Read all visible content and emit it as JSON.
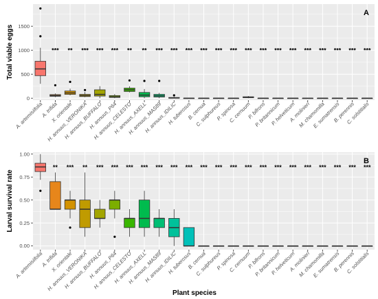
{
  "xlabel": "Plant species",
  "chart_data": [
    {
      "type": "box",
      "panel": "A",
      "ylabel": "Total viable eggs",
      "ylim": [
        -40,
        1960
      ],
      "yticks": [
        0,
        500,
        1000,
        1500
      ],
      "categories": [
        "A. artemisiifolia",
        "A. trifida",
        "X. orientale",
        "H. annuus_VERONIKA",
        "H. annuus_BUFFALO",
        "H. annuus_P64",
        "H. annuus_CELESTO",
        "H. annuus_AXELL",
        "H. annuus_MAS89",
        "H. annuus_IDILIC",
        "H. tuberosus",
        "B. cernua",
        "C. sulphureus",
        "P. spinosa",
        "C. cernuum",
        "P. bifrons",
        "P. britannicum",
        "P. helveticum",
        "A. molinieri",
        "M. chamomilla",
        "E. sumatrensis",
        "B. perennis",
        "C. solstitialis"
      ],
      "significance": [
        "",
        "***",
        "**",
        "***",
        "***",
        "***",
        "**",
        "**",
        "***",
        "***",
        "***",
        "***",
        "***",
        "***",
        "***",
        "***",
        "***",
        "***",
        "***",
        "***",
        "***",
        "***",
        "***"
      ],
      "boxes": [
        {
          "min": 300,
          "q1": 470,
          "median": 610,
          "q3": 770,
          "max": 1050,
          "outliers": [
            1290,
            1870
          ]
        },
        {
          "min": 20,
          "q1": 40,
          "median": 55,
          "q3": 75,
          "max": 100,
          "outliers": [
            270
          ]
        },
        {
          "min": 60,
          "q1": 80,
          "median": 110,
          "q3": 150,
          "max": 200,
          "outliers": [
            340
          ]
        },
        {
          "min": 20,
          "q1": 35,
          "median": 55,
          "q3": 80,
          "max": 130,
          "outliers": [
            170
          ]
        },
        {
          "min": 0,
          "q1": 45,
          "median": 80,
          "q3": 175,
          "max": 250,
          "outliers": []
        },
        {
          "min": 0,
          "q1": 15,
          "median": 30,
          "q3": 55,
          "max": 85,
          "outliers": []
        },
        {
          "min": 120,
          "q1": 140,
          "median": 175,
          "q3": 210,
          "max": 250,
          "outliers": [
            370
          ]
        },
        {
          "min": 0,
          "q1": 30,
          "median": 65,
          "q3": 120,
          "max": 190,
          "outliers": [
            360
          ]
        },
        {
          "min": 0,
          "q1": 25,
          "median": 50,
          "q3": 80,
          "max": 110,
          "outliers": [
            360
          ]
        },
        {
          "min": 0,
          "q1": 0,
          "median": 5,
          "q3": 15,
          "max": 30,
          "outliers": [
            60
          ]
        },
        {
          "min": 0,
          "q1": 0,
          "median": 0,
          "q3": 0,
          "max": 0,
          "outliers": []
        },
        {
          "min": 0,
          "q1": 0,
          "median": 0,
          "q3": 0,
          "max": 0,
          "outliers": []
        },
        {
          "min": 0,
          "q1": 0,
          "median": 0,
          "q3": 0,
          "max": 0,
          "outliers": []
        },
        {
          "min": 0,
          "q1": 0,
          "median": 0,
          "q3": 0,
          "max": 0,
          "outliers": []
        },
        {
          "min": 0,
          "q1": 10,
          "median": 20,
          "q3": 30,
          "max": 45,
          "outliers": []
        },
        {
          "min": 0,
          "q1": 0,
          "median": 0,
          "q3": 0,
          "max": 0,
          "outliers": []
        },
        {
          "min": 0,
          "q1": 0,
          "median": 0,
          "q3": 0,
          "max": 0,
          "outliers": []
        },
        {
          "min": 0,
          "q1": 0,
          "median": 0,
          "q3": 0,
          "max": 0,
          "outliers": []
        },
        {
          "min": 0,
          "q1": 0,
          "median": 0,
          "q3": 0,
          "max": 0,
          "outliers": []
        },
        {
          "min": 0,
          "q1": 0,
          "median": 0,
          "q3": 0,
          "max": 0,
          "outliers": []
        },
        {
          "min": 0,
          "q1": 0,
          "median": 0,
          "q3": 0,
          "max": 0,
          "outliers": []
        },
        {
          "min": 0,
          "q1": 0,
          "median": 0,
          "q3": 0,
          "max": 0,
          "outliers": []
        },
        {
          "min": 0,
          "q1": 0,
          "median": 0,
          "q3": 0,
          "max": 0,
          "outliers": []
        }
      ],
      "grid": true
    },
    {
      "type": "box",
      "panel": "B",
      "ylabel": "Larval survival rate",
      "ylim": [
        -0.04,
        1.02
      ],
      "yticks": [
        0.0,
        0.25,
        0.5,
        0.75,
        1.0
      ],
      "yticklabels": [
        "0.00",
        "0.25",
        "0.50",
        "0.75",
        "1.00"
      ],
      "categories": [
        "A. artemisiifolia",
        "A. trifida",
        "X. orientale",
        "H. annuus_VERONIKA",
        "H. annuus_BUFFALO",
        "H. annuus_P64",
        "H. annuus_CELESTO",
        "H. annuus_AXELL",
        "H. annuus_MAS89",
        "H. annuus_IDILIC",
        "H. tuberosus",
        "B. cernua",
        "C. sulphureus",
        "P. spinosa",
        "C. cernuum",
        "P. bifrons",
        "P. britannicum",
        "P. helveticum",
        "A. molinieri",
        "M. chamomilla",
        "E. sumatrensis",
        "B. perennis",
        "C. solstitialis"
      ],
      "significance": [
        "",
        "**",
        "***",
        "**",
        "***",
        "***",
        "***",
        "***",
        "***",
        "***",
        "***",
        "***",
        "***",
        "***",
        "***",
        "***",
        "***",
        "***",
        "***",
        "***",
        "***",
        "***",
        "***"
      ],
      "boxes": [
        {
          "min": 0.72,
          "q1": 0.81,
          "median": 0.86,
          "q3": 0.9,
          "max": 1.0,
          "outliers": [
            0.6
          ]
        },
        {
          "min": 0.4,
          "q1": 0.4,
          "median": 0.4,
          "q3": 0.7,
          "max": 0.8,
          "outliers": []
        },
        {
          "min": 0.3,
          "q1": 0.4,
          "median": 0.5,
          "q3": 0.5,
          "max": 0.6,
          "outliers": [
            0.2
          ]
        },
        {
          "min": 0.1,
          "q1": 0.2,
          "median": 0.4,
          "q3": 0.5,
          "max": 0.8,
          "outliers": []
        },
        {
          "min": 0.2,
          "q1": 0.3,
          "median": 0.3,
          "q3": 0.4,
          "max": 0.5,
          "outliers": []
        },
        {
          "min": 0.3,
          "q1": 0.4,
          "median": 0.5,
          "q3": 0.5,
          "max": 0.6,
          "outliers": [
            0.1
          ]
        },
        {
          "min": 0.1,
          "q1": 0.2,
          "median": 0.3,
          "q3": 0.3,
          "max": 0.4,
          "outliers": []
        },
        {
          "min": 0.1,
          "q1": 0.2,
          "median": 0.3,
          "q3": 0.5,
          "max": 0.6,
          "outliers": []
        },
        {
          "min": 0.1,
          "q1": 0.2,
          "median": 0.3,
          "q3": 0.3,
          "max": 0.4,
          "outliers": []
        },
        {
          "min": 0.0,
          "q1": 0.1,
          "median": 0.2,
          "q3": 0.3,
          "max": 0.4,
          "outliers": []
        },
        {
          "min": 0.0,
          "q1": 0.0,
          "median": 0.0,
          "q3": 0.2,
          "max": 0.2,
          "outliers": []
        },
        {
          "min": 0,
          "q1": 0,
          "median": 0,
          "q3": 0,
          "max": 0,
          "outliers": []
        },
        {
          "min": 0,
          "q1": 0,
          "median": 0,
          "q3": 0,
          "max": 0,
          "outliers": []
        },
        {
          "min": 0,
          "q1": 0,
          "median": 0,
          "q3": 0,
          "max": 0,
          "outliers": []
        },
        {
          "min": 0,
          "q1": 0,
          "median": 0,
          "q3": 0,
          "max": 0,
          "outliers": []
        },
        {
          "min": 0,
          "q1": 0,
          "median": 0,
          "q3": 0,
          "max": 0,
          "outliers": []
        },
        {
          "min": 0,
          "q1": 0,
          "median": 0,
          "q3": 0,
          "max": 0,
          "outliers": []
        },
        {
          "min": 0,
          "q1": 0,
          "median": 0,
          "q3": 0,
          "max": 0,
          "outliers": []
        },
        {
          "min": 0,
          "q1": 0,
          "median": 0,
          "q3": 0,
          "max": 0,
          "outliers": []
        },
        {
          "min": 0,
          "q1": 0,
          "median": 0,
          "q3": 0,
          "max": 0,
          "outliers": []
        },
        {
          "min": 0,
          "q1": 0,
          "median": 0,
          "q3": 0,
          "max": 0,
          "outliers": []
        },
        {
          "min": 0,
          "q1": 0,
          "median": 0,
          "q3": 0,
          "max": 0,
          "outliers": []
        },
        {
          "min": 0,
          "q1": 0,
          "median": 0,
          "q3": 0,
          "max": 0,
          "outliers": []
        }
      ],
      "grid": true
    }
  ],
  "colors": {
    "panel_bg": "#ebebeb",
    "grid": "#ffffff",
    "box_fills": [
      "#f8766d",
      "#e7861b",
      "#d39200",
      "#c09b00",
      "#a3a500",
      "#7cae00",
      "#39b600",
      "#00bb4e",
      "#00be74",
      "#00c19a",
      "#00c0b8"
    ],
    "box_line": "#333333",
    "outlier": "#000000"
  }
}
